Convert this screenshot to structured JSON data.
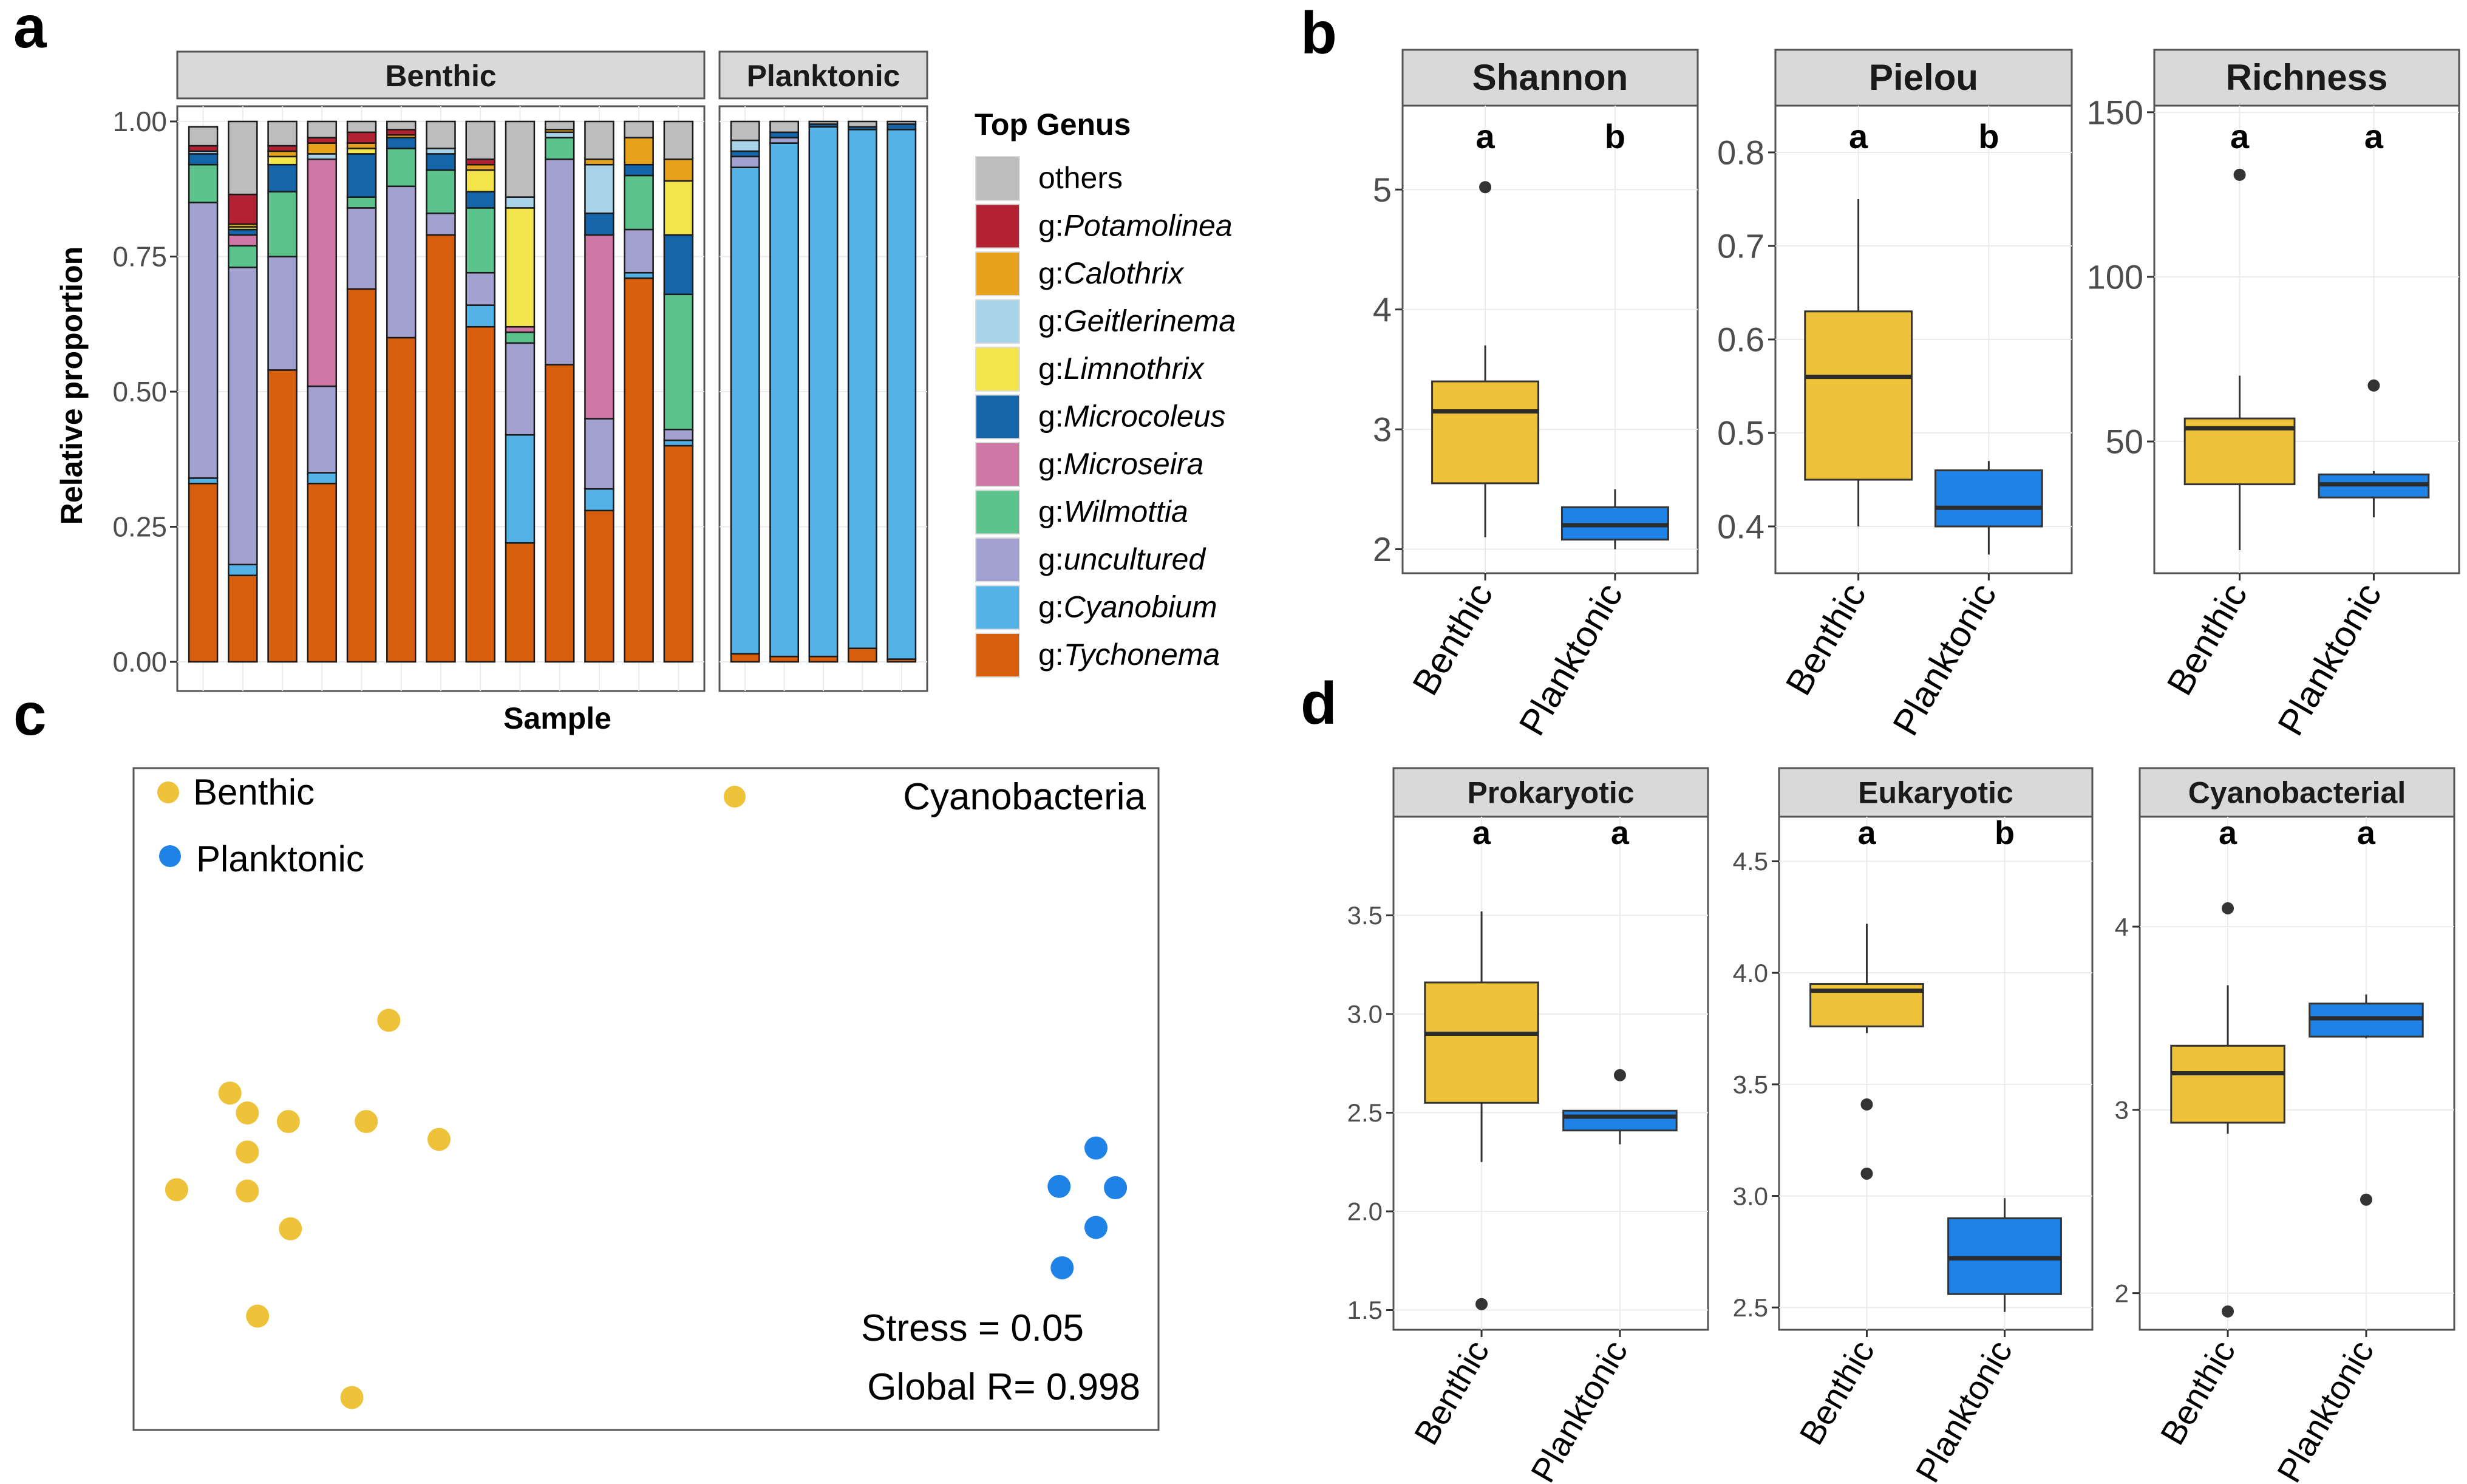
{
  "panel_letters": [
    "a",
    "b",
    "c",
    "d"
  ],
  "colors": {
    "benthic": "#eec33a",
    "planktonic": "#1f82e6",
    "grid": "#ebebeb",
    "strip": "#d9d9d9",
    "axis_text": "#4d4d4d",
    "point": "#333333"
  },
  "chart_data": [
    {
      "panel": "a",
      "type": "bar",
      "stacked": true,
      "ylabel": "Relative proportion",
      "xlabel": "Sample",
      "ylim": [
        0,
        1
      ],
      "yticks": [
        "0.00",
        "0.25",
        "0.50",
        "0.75",
        "1.00"
      ],
      "facets": [
        "Benthic",
        "Planktonic"
      ],
      "legend": {
        "title": "Top Genus",
        "entries": [
          {
            "prefix": "",
            "name": "others",
            "italic": false,
            "color": "#bdbdbd"
          },
          {
            "prefix": "g:",
            "name": "Potamolinea",
            "italic": true,
            "color": "#b22232"
          },
          {
            "prefix": "g:",
            "name": "Calothrix",
            "italic": true,
            "color": "#e6a21c"
          },
          {
            "prefix": "g:",
            "name": "Geitlerinema",
            "italic": true,
            "color": "#a8d3e8"
          },
          {
            "prefix": "g:",
            "name": "Limnothrix",
            "italic": true,
            "color": "#f2e54b"
          },
          {
            "prefix": "g:",
            "name": "Microcoleus",
            "italic": true,
            "color": "#1565aa"
          },
          {
            "prefix": "g:",
            "name": "Microseira",
            "italic": true,
            "color": "#cf78a6"
          },
          {
            "prefix": "g:",
            "name": "Wilmottia",
            "italic": true,
            "color": "#5cc38c"
          },
          {
            "prefix": "g:",
            "name": "uncultured",
            "italic": true,
            "color": "#a3a1d0"
          },
          {
            "prefix": "g:",
            "name": "Cyanobium",
            "italic": true,
            "color": "#54b2e6"
          },
          {
            "prefix": "g:",
            "name": "Tychonema",
            "italic": true,
            "color": "#d75e0c"
          }
        ]
      },
      "stack_order": [
        "Tychonema",
        "Cyanobium",
        "uncultured",
        "Wilmottia",
        "Microseira",
        "Microcoleus",
        "Limnothrix",
        "Geitlerinema",
        "Calothrix",
        "Potamolinea",
        "others"
      ],
      "samples": [
        {
          "facet": "Benthic",
          "values": [
            0.33,
            0.01,
            0.51,
            0.07,
            0,
            0.02,
            0,
            0.005,
            0,
            0.01,
            0.035
          ]
        },
        {
          "facet": "Benthic",
          "values": [
            0.16,
            0.02,
            0.55,
            0.04,
            0.02,
            0.01,
            0.005,
            0,
            0.005,
            0.055,
            0.135
          ]
        },
        {
          "facet": "Benthic",
          "values": [
            0.54,
            0,
            0.21,
            0.12,
            0,
            0.05,
            0.015,
            0,
            0.01,
            0.01,
            0.045
          ]
        },
        {
          "facet": "Benthic",
          "values": [
            0.33,
            0.02,
            0.16,
            0,
            0.42,
            0,
            0,
            0.01,
            0.02,
            0.01,
            0.03
          ]
        },
        {
          "facet": "Benthic",
          "values": [
            0.69,
            0,
            0.15,
            0.02,
            0,
            0.08,
            0.01,
            0,
            0.01,
            0.02,
            0.02
          ]
        },
        {
          "facet": "Benthic",
          "values": [
            0.6,
            0,
            0.28,
            0.07,
            0,
            0.02,
            0,
            0,
            0.005,
            0.01,
            0.015
          ]
        },
        {
          "facet": "Benthic",
          "values": [
            0.79,
            0,
            0.04,
            0.08,
            0,
            0.03,
            0,
            0.01,
            0,
            0,
            0.05
          ]
        },
        {
          "facet": "Benthic",
          "values": [
            0.62,
            0.04,
            0.06,
            0.12,
            0,
            0.03,
            0.04,
            0,
            0.01,
            0.01,
            0.07
          ]
        },
        {
          "facet": "Benthic",
          "values": [
            0.22,
            0.2,
            0.17,
            0.02,
            0.01,
            0,
            0.22,
            0.02,
            0,
            0,
            0.14
          ]
        },
        {
          "facet": "Benthic",
          "values": [
            0.55,
            0,
            0.38,
            0.04,
            0,
            0,
            0,
            0.01,
            0.005,
            0,
            0.015
          ]
        },
        {
          "facet": "Benthic",
          "values": [
            0.28,
            0.04,
            0.13,
            0,
            0.34,
            0.04,
            0,
            0.09,
            0.01,
            0,
            0.07
          ]
        },
        {
          "facet": "Benthic",
          "values": [
            0.71,
            0.01,
            0.08,
            0.1,
            0,
            0.02,
            0,
            0,
            0.05,
            0,
            0.03
          ]
        },
        {
          "facet": "Benthic",
          "values": [
            0.4,
            0.01,
            0.02,
            0.25,
            0,
            0.11,
            0.1,
            0,
            0.04,
            0,
            0.07
          ]
        },
        {
          "facet": "Planktonic",
          "values": [
            0.015,
            0.9,
            0.02,
            0,
            0,
            0.01,
            0,
            0.02,
            0,
            0,
            0.035
          ]
        },
        {
          "facet": "Planktonic",
          "values": [
            0.01,
            0.95,
            0.01,
            0,
            0,
            0.01,
            0,
            0,
            0,
            0,
            0.02
          ]
        },
        {
          "facet": "Planktonic",
          "values": [
            0.01,
            0.98,
            0,
            0,
            0,
            0.005,
            0,
            0,
            0,
            0,
            0.005
          ]
        },
        {
          "facet": "Planktonic",
          "values": [
            0.025,
            0.96,
            0,
            0,
            0,
            0.005,
            0,
            0,
            0,
            0,
            0.01
          ]
        },
        {
          "facet": "Planktonic",
          "values": [
            0.005,
            0.98,
            0,
            0,
            0,
            0.01,
            0,
            0,
            0,
            0,
            0.005
          ]
        }
      ]
    },
    {
      "panel": "b",
      "type": "box",
      "categories": [
        "Benthic",
        "Planktonic"
      ],
      "facets": [
        {
          "title": "Shannon",
          "ylim": [
            1.8,
            5.7
          ],
          "yticks": [
            2,
            3,
            4,
            5
          ],
          "boxes": [
            {
              "group": "Benthic",
              "q1": 2.55,
              "median": 3.15,
              "q3": 3.4,
              "whisker_low": 2.1,
              "whisker_high": 3.7,
              "outliers": [
                5.02
              ],
              "letter": "a"
            },
            {
              "group": "Planktonic",
              "q1": 2.08,
              "median": 2.2,
              "q3": 2.35,
              "whisker_low": 2.0,
              "whisker_high": 2.5,
              "outliers": [],
              "letter": "b"
            }
          ]
        },
        {
          "title": "Pielou",
          "ylim": [
            0.35,
            0.85
          ],
          "yticks": [
            0.4,
            0.5,
            0.6,
            0.7,
            0.8
          ],
          "boxes": [
            {
              "group": "Benthic",
              "q1": 0.45,
              "median": 0.56,
              "q3": 0.63,
              "whisker_low": 0.4,
              "whisker_high": 0.75,
              "outliers": [],
              "letter": "a"
            },
            {
              "group": "Planktonic",
              "q1": 0.4,
              "median": 0.42,
              "q3": 0.46,
              "whisker_low": 0.37,
              "whisker_high": 0.47,
              "outliers": [],
              "letter": "b"
            }
          ]
        },
        {
          "title": "Richness",
          "ylim": [
            10,
            152
          ],
          "yticks": [
            50,
            100,
            150
          ],
          "boxes": [
            {
              "group": "Benthic",
              "q1": 37,
              "median": 54,
              "q3": 57,
              "whisker_low": 17,
              "whisker_high": 70,
              "outliers": [
                131
              ],
              "letter": "a"
            },
            {
              "group": "Planktonic",
              "q1": 33,
              "median": 37,
              "q3": 40,
              "whisker_low": 27,
              "whisker_high": 41,
              "outliers": [
                67
              ],
              "letter": "a"
            }
          ]
        }
      ]
    },
    {
      "panel": "c",
      "type": "scatter",
      "legend": [
        "Benthic",
        "Planktonic"
      ],
      "annotations": [
        "Cyanobacteria",
        "Stress = 0.05",
        "Global R= 0.998"
      ],
      "xlim": [
        0,
        100
      ],
      "ylim": [
        0,
        100
      ],
      "series": [
        {
          "name": "Benthic",
          "points": [
            [
              24.9,
              61.9
            ],
            [
              9.4,
              50.9
            ],
            [
              11.1,
              47.9
            ],
            [
              15.1,
              46.6
            ],
            [
              22.7,
              46.6
            ],
            [
              29.8,
              43.9
            ],
            [
              11.1,
              42.0
            ],
            [
              11.1,
              36.1
            ],
            [
              15.3,
              30.4
            ],
            [
              4.2,
              36.3
            ],
            [
              12.1,
              17.2
            ],
            [
              21.3,
              4.9
            ]
          ]
        },
        {
          "name": "Planktonic",
          "points": [
            [
              93.9,
              42.6
            ],
            [
              95.8,
              36.6
            ],
            [
              90.3,
              36.8
            ],
            [
              93.9,
              30.6
            ],
            [
              90.6,
              24.5
            ]
          ]
        }
      ]
    },
    {
      "panel": "d",
      "type": "box",
      "categories": [
        "Benthic",
        "Planktonic"
      ],
      "facets": [
        {
          "title": "Prokaryotic",
          "ylim": [
            1.4,
            4.0
          ],
          "yticks": [
            "1.5",
            "2.0",
            "2.5",
            "3.0",
            "3.5"
          ],
          "boxes": [
            {
              "group": "Benthic",
              "q1": 2.55,
              "median": 2.9,
              "q3": 3.16,
              "whisker_low": 2.25,
              "whisker_high": 3.52,
              "outliers": [
                1.53
              ],
              "letter": "a"
            },
            {
              "group": "Planktonic",
              "q1": 2.41,
              "median": 2.48,
              "q3": 2.51,
              "whisker_low": 2.34,
              "whisker_high": 2.51,
              "outliers": [
                2.69
              ],
              "letter": "a"
            }
          ]
        },
        {
          "title": "Eukaryotic",
          "ylim": [
            2.4,
            4.7
          ],
          "yticks": [
            "2.5",
            "3.0",
            "3.5",
            "4.0",
            "4.5"
          ],
          "boxes": [
            {
              "group": "Benthic",
              "q1": 3.76,
              "median": 3.92,
              "q3": 3.95,
              "whisker_low": 3.73,
              "whisker_high": 4.22,
              "outliers": [
                3.41,
                3.1
              ],
              "letter": "a"
            },
            {
              "group": "Planktonic",
              "q1": 2.56,
              "median": 2.72,
              "q3": 2.9,
              "whisker_low": 2.48,
              "whisker_high": 2.99,
              "outliers": [],
              "letter": "b"
            }
          ]
        },
        {
          "title": "Cyanobacterial",
          "ylim": [
            1.8,
            4.6
          ],
          "yticks": [
            2,
            3,
            4
          ],
          "boxes": [
            {
              "group": "Benthic",
              "q1": 2.93,
              "median": 3.2,
              "q3": 3.35,
              "whisker_low": 2.87,
              "whisker_high": 3.68,
              "outliers": [
                4.1,
                1.9
              ],
              "letter": "a"
            },
            {
              "group": "Planktonic",
              "q1": 3.4,
              "median": 3.5,
              "q3": 3.58,
              "whisker_low": 3.39,
              "whisker_high": 3.63,
              "outliers": [
                2.51
              ],
              "letter": "a"
            }
          ]
        }
      ]
    }
  ]
}
